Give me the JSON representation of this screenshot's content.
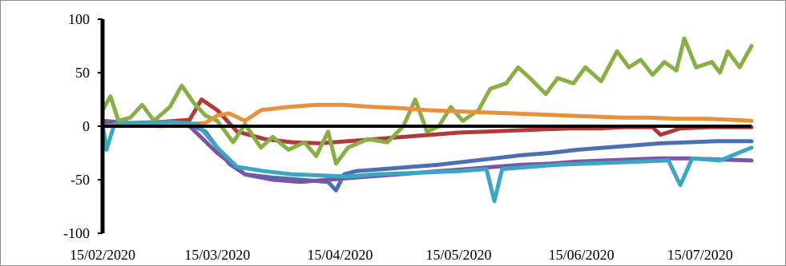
{
  "chart_data": {
    "type": "line",
    "title": "",
    "xlabel": "",
    "ylabel": "",
    "ylim": [
      -100,
      100
    ],
    "yticks": [
      -100,
      -50,
      0,
      50,
      100
    ],
    "xlim": [
      "2020-02-15",
      "2020-07-28"
    ],
    "xtick_labels": [
      "15/02/2020",
      "15/03/2020",
      "15/04/2020",
      "15/05/2020",
      "15/06/2020",
      "15/07/2020"
    ],
    "xtick_dates": [
      "2020-02-15",
      "2020-03-15",
      "2020-04-15",
      "2020-05-15",
      "2020-06-15",
      "2020-07-15"
    ],
    "grid": false,
    "legend": "none",
    "series": [
      {
        "color": "#4a6fb5",
        "points": [
          [
            "2020-02-15",
            5
          ],
          [
            "2020-02-22",
            3
          ],
          [
            "2020-03-01",
            4
          ],
          [
            "2020-03-08",
            2
          ],
          [
            "2020-03-12",
            -5
          ],
          [
            "2020-03-15",
            -20
          ],
          [
            "2020-03-18",
            -35
          ],
          [
            "2020-03-22",
            -45
          ],
          [
            "2020-03-29",
            -48
          ],
          [
            "2020-04-05",
            -50
          ],
          [
            "2020-04-12",
            -52
          ],
          [
            "2020-04-14",
            -60
          ],
          [
            "2020-04-16",
            -45
          ],
          [
            "2020-04-19",
            -42
          ],
          [
            "2020-04-26",
            -40
          ],
          [
            "2020-05-03",
            -38
          ],
          [
            "2020-05-10",
            -36
          ],
          [
            "2020-05-17",
            -33
          ],
          [
            "2020-05-24",
            -30
          ],
          [
            "2020-05-31",
            -27
          ],
          [
            "2020-06-07",
            -25
          ],
          [
            "2020-06-14",
            -22
          ],
          [
            "2020-06-21",
            -20
          ],
          [
            "2020-06-28",
            -18
          ],
          [
            "2020-07-05",
            -16
          ],
          [
            "2020-07-12",
            -15
          ],
          [
            "2020-07-19",
            -14
          ],
          [
            "2020-07-28",
            -14
          ]
        ]
      },
      {
        "color": "#b03a3a",
        "points": [
          [
            "2020-02-15",
            3
          ],
          [
            "2020-02-22",
            2
          ],
          [
            "2020-03-01",
            4
          ],
          [
            "2020-03-08",
            6
          ],
          [
            "2020-03-11",
            25
          ],
          [
            "2020-03-15",
            15
          ],
          [
            "2020-03-20",
            -5
          ],
          [
            "2020-03-27",
            -12
          ],
          [
            "2020-04-03",
            -15
          ],
          [
            "2020-04-10",
            -16
          ],
          [
            "2020-04-17",
            -14
          ],
          [
            "2020-04-24",
            -12
          ],
          [
            "2020-05-01",
            -10
          ],
          [
            "2020-05-08",
            -8
          ],
          [
            "2020-05-15",
            -6
          ],
          [
            "2020-05-22",
            -5
          ],
          [
            "2020-05-29",
            -4
          ],
          [
            "2020-06-05",
            -3
          ],
          [
            "2020-06-12",
            -2
          ],
          [
            "2020-06-19",
            -2
          ],
          [
            "2020-06-26",
            -1
          ],
          [
            "2020-07-03",
            -1
          ],
          [
            "2020-07-05",
            -8
          ],
          [
            "2020-07-10",
            -2
          ],
          [
            "2020-07-17",
            -1
          ],
          [
            "2020-07-28",
            -1
          ]
        ]
      },
      {
        "color": "#7a55a6",
        "points": [
          [
            "2020-02-15",
            2
          ],
          [
            "2020-02-22",
            1
          ],
          [
            "2020-03-01",
            2
          ],
          [
            "2020-03-08",
            0
          ],
          [
            "2020-03-15",
            -25
          ],
          [
            "2020-03-22",
            -45
          ],
          [
            "2020-03-29",
            -50
          ],
          [
            "2020-04-05",
            -52
          ],
          [
            "2020-04-12",
            -50
          ],
          [
            "2020-04-19",
            -48
          ],
          [
            "2020-04-26",
            -46
          ],
          [
            "2020-05-03",
            -44
          ],
          [
            "2020-05-10",
            -42
          ],
          [
            "2020-05-17",
            -40
          ],
          [
            "2020-05-24",
            -38
          ],
          [
            "2020-05-31",
            -36
          ],
          [
            "2020-06-07",
            -35
          ],
          [
            "2020-06-14",
            -33
          ],
          [
            "2020-06-21",
            -32
          ],
          [
            "2020-06-28",
            -31
          ],
          [
            "2020-07-05",
            -30
          ],
          [
            "2020-07-12",
            -30
          ],
          [
            "2020-07-19",
            -31
          ],
          [
            "2020-07-28",
            -32
          ]
        ]
      },
      {
        "color": "#8aae46",
        "points": [
          [
            "2020-02-15",
            15
          ],
          [
            "2020-02-17",
            28
          ],
          [
            "2020-02-19",
            5
          ],
          [
            "2020-02-22",
            8
          ],
          [
            "2020-02-25",
            20
          ],
          [
            "2020-02-28",
            5
          ],
          [
            "2020-03-03",
            18
          ],
          [
            "2020-03-06",
            38
          ],
          [
            "2020-03-09",
            22
          ],
          [
            "2020-03-12",
            10
          ],
          [
            "2020-03-15",
            5
          ],
          [
            "2020-03-19",
            -15
          ],
          [
            "2020-03-22",
            2
          ],
          [
            "2020-03-26",
            -20
          ],
          [
            "2020-03-29",
            -10
          ],
          [
            "2020-04-02",
            -22
          ],
          [
            "2020-04-06",
            -15
          ],
          [
            "2020-04-09",
            -28
          ],
          [
            "2020-04-12",
            -5
          ],
          [
            "2020-04-14",
            -35
          ],
          [
            "2020-04-17",
            -20
          ],
          [
            "2020-04-22",
            -12
          ],
          [
            "2020-04-27",
            -15
          ],
          [
            "2020-05-01",
            0
          ],
          [
            "2020-05-04",
            25
          ],
          [
            "2020-05-07",
            -5
          ],
          [
            "2020-05-10",
            0
          ],
          [
            "2020-05-13",
            18
          ],
          [
            "2020-05-16",
            5
          ],
          [
            "2020-05-20",
            15
          ],
          [
            "2020-05-23",
            35
          ],
          [
            "2020-05-27",
            40
          ],
          [
            "2020-05-30",
            55
          ],
          [
            "2020-06-02",
            45
          ],
          [
            "2020-06-06",
            30
          ],
          [
            "2020-06-09",
            45
          ],
          [
            "2020-06-13",
            40
          ],
          [
            "2020-06-16",
            55
          ],
          [
            "2020-06-20",
            42
          ],
          [
            "2020-06-24",
            70
          ],
          [
            "2020-06-27",
            55
          ],
          [
            "2020-06-30",
            62
          ],
          [
            "2020-07-03",
            48
          ],
          [
            "2020-07-06",
            60
          ],
          [
            "2020-07-09",
            52
          ],
          [
            "2020-07-11",
            82
          ],
          [
            "2020-07-14",
            55
          ],
          [
            "2020-07-18",
            60
          ],
          [
            "2020-07-20",
            50
          ],
          [
            "2020-07-22",
            70
          ],
          [
            "2020-07-25",
            55
          ],
          [
            "2020-07-28",
            75
          ]
        ]
      },
      {
        "color": "#e8913a",
        "points": [
          [
            "2020-02-15",
            0
          ],
          [
            "2020-02-22",
            1
          ],
          [
            "2020-03-01",
            0
          ],
          [
            "2020-03-08",
            2
          ],
          [
            "2020-03-12",
            3
          ],
          [
            "2020-03-15",
            10
          ],
          [
            "2020-03-18",
            12
          ],
          [
            "2020-03-22",
            5
          ],
          [
            "2020-03-26",
            15
          ],
          [
            "2020-04-02",
            18
          ],
          [
            "2020-04-09",
            20
          ],
          [
            "2020-04-16",
            20
          ],
          [
            "2020-04-23",
            18
          ],
          [
            "2020-04-30",
            17
          ],
          [
            "2020-05-07",
            15
          ],
          [
            "2020-05-14",
            14
          ],
          [
            "2020-05-21",
            13
          ],
          [
            "2020-05-28",
            12
          ],
          [
            "2020-06-04",
            11
          ],
          [
            "2020-06-11",
            10
          ],
          [
            "2020-06-18",
            9
          ],
          [
            "2020-06-25",
            8
          ],
          [
            "2020-07-02",
            8
          ],
          [
            "2020-07-09",
            7
          ],
          [
            "2020-07-16",
            7
          ],
          [
            "2020-07-23",
            6
          ],
          [
            "2020-07-28",
            5
          ]
        ]
      },
      {
        "color": "#3aa6c4",
        "points": [
          [
            "2020-02-15",
            2
          ],
          [
            "2020-02-16",
            -22
          ],
          [
            "2020-02-18",
            2
          ],
          [
            "2020-02-25",
            3
          ],
          [
            "2020-03-03",
            4
          ],
          [
            "2020-03-10",
            2
          ],
          [
            "2020-03-15",
            -20
          ],
          [
            "2020-03-20",
            -38
          ],
          [
            "2020-03-27",
            -42
          ],
          [
            "2020-04-03",
            -45
          ],
          [
            "2020-04-10",
            -46
          ],
          [
            "2020-04-17",
            -47
          ],
          [
            "2020-04-24",
            -45
          ],
          [
            "2020-05-01",
            -44
          ],
          [
            "2020-05-08",
            -43
          ],
          [
            "2020-05-15",
            -42
          ],
          [
            "2020-05-22",
            -40
          ],
          [
            "2020-05-24",
            -70
          ],
          [
            "2020-05-26",
            -40
          ],
          [
            "2020-06-02",
            -38
          ],
          [
            "2020-06-09",
            -36
          ],
          [
            "2020-06-16",
            -35
          ],
          [
            "2020-06-23",
            -34
          ],
          [
            "2020-06-30",
            -33
          ],
          [
            "2020-07-07",
            -32
          ],
          [
            "2020-07-10",
            -55
          ],
          [
            "2020-07-13",
            -30
          ],
          [
            "2020-07-20",
            -32
          ],
          [
            "2020-07-28",
            -20
          ]
        ]
      }
    ]
  }
}
